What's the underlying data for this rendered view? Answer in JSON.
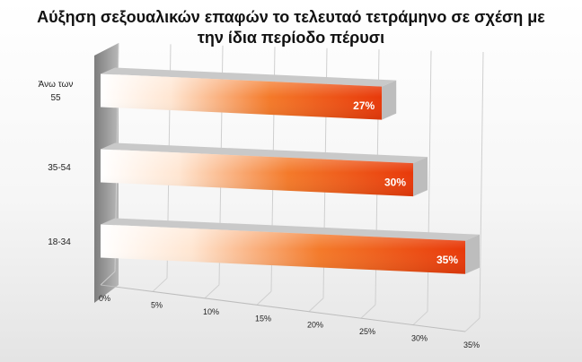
{
  "title": {
    "line1": "Αύξηση σεξουαλικών επαφών το τελευταό τετράμηνο σε σχέση με",
    "line2": "την ίδια περίοδο πέρυσι"
  },
  "colors": {
    "bar_dark": "#e8390a",
    "bar_mid": "#f47a2a",
    "bar_light": "#ffffff",
    "bar_top": "#c9c9c9",
    "bar_end": "#bdbdbd",
    "value_text": "#ffffff",
    "grid": "#cfcfcf",
    "wall": "#9a9a9a"
  },
  "chart_data": {
    "type": "bar",
    "orientation": "horizontal",
    "style": "3d",
    "categories": [
      "Άνω των 55",
      "35-54",
      "18-34"
    ],
    "values": [
      27,
      30,
      35
    ],
    "value_labels": [
      "27%",
      "30%",
      "35%"
    ],
    "x_ticks": [
      "0%",
      "5%",
      "10%",
      "15%",
      "20%",
      "25%",
      "30%",
      "35%"
    ],
    "xlim": [
      0,
      35
    ],
    "title": "Αύξηση σεξουαλικών επαφών το τελευταό τετράμηνο σε σχέση με την ίδια περίοδο πέρυσι",
    "grid": true,
    "legend": "none"
  }
}
